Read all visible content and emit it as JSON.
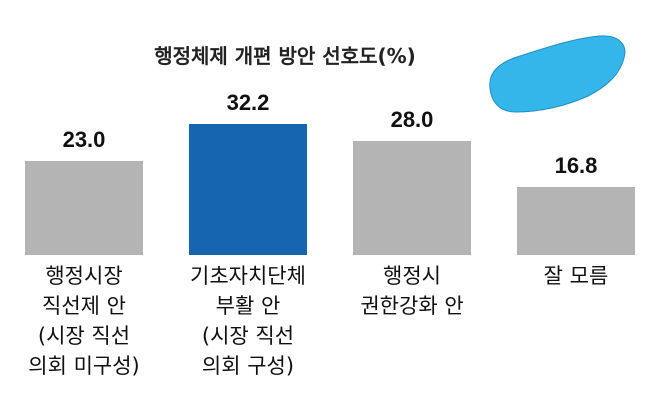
{
  "chart_data": {
    "type": "bar",
    "title": "행정체제 개편 방안 선호도(%)",
    "categories": [
      "행정시장\n직선제 안\n(시장 직선\n의회 미구성)",
      "기초자치단체\n부활 안\n(시장 직선\n의회 구성)",
      "행정시\n권한강화 안",
      "잘 모름"
    ],
    "values": [
      23.0,
      32.2,
      28.0,
      16.8
    ],
    "value_labels": [
      "23.0",
      "32.2",
      "28.0",
      "16.8"
    ],
    "colors": [
      "#b4b4b4",
      "#1565b0",
      "#b4b4b4",
      "#b4b4b4"
    ]
  }
}
